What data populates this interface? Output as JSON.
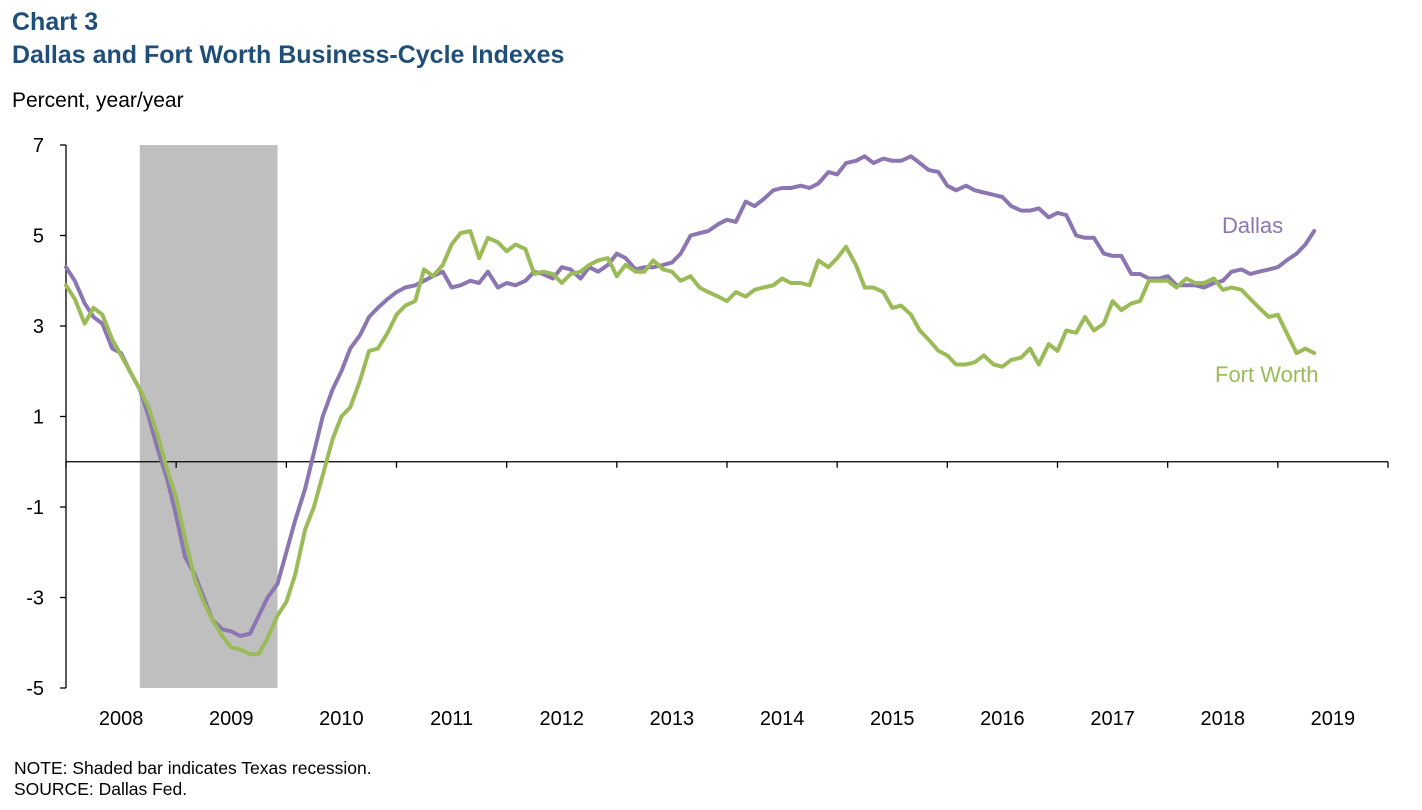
{
  "header": {
    "chart_number": "Chart 3",
    "title": "Dallas and Fort Worth Business-Cycle Indexes",
    "unit_label": "Percent, year/year"
  },
  "notes": {
    "note": "NOTE: Shaded bar indicates Texas recession.",
    "source": "SOURCE: Dallas Fed."
  },
  "colors": {
    "dallas": "#8c76b1",
    "fort_worth": "#9bbb59",
    "recession": "#bfbfbf",
    "axis": "#000000",
    "title": "#1f4e79"
  },
  "chart_data": {
    "type": "line",
    "title": "Dallas and Fort Worth Business-Cycle Indexes",
    "ylabel": "Percent, year/year",
    "xlabel": "",
    "ylim": [
      -5,
      7
    ],
    "yticks": [
      7,
      5,
      3,
      1,
      -1,
      -3,
      -5
    ],
    "x_range": [
      2007.5,
      2019.5
    ],
    "x_tick_labels": [
      "2008",
      "2009",
      "2010",
      "2011",
      "2012",
      "2013",
      "2014",
      "2015",
      "2016",
      "2017",
      "2018",
      "2019"
    ],
    "grid": false,
    "recession": {
      "start": 2008.17,
      "end": 2009.42
    },
    "series": [
      {
        "name": "Dallas",
        "label_text": "Dallas",
        "points": [
          [
            2007.5,
            4.3
          ],
          [
            2007.58,
            4.0
          ],
          [
            2007.67,
            3.5
          ],
          [
            2007.75,
            3.2
          ],
          [
            2007.83,
            3.05
          ],
          [
            2007.92,
            2.5
          ],
          [
            2008.0,
            2.4
          ],
          [
            2008.08,
            2.0
          ],
          [
            2008.17,
            1.6
          ],
          [
            2008.25,
            1.0
          ],
          [
            2008.33,
            0.3
          ],
          [
            2008.42,
            -0.4
          ],
          [
            2008.5,
            -1.2
          ],
          [
            2008.58,
            -2.1
          ],
          [
            2008.67,
            -2.5
          ],
          [
            2008.75,
            -3.0
          ],
          [
            2008.83,
            -3.5
          ],
          [
            2008.92,
            -3.7
          ],
          [
            2009.0,
            -3.75
          ],
          [
            2009.08,
            -3.85
          ],
          [
            2009.17,
            -3.8
          ],
          [
            2009.25,
            -3.4
          ],
          [
            2009.33,
            -3.0
          ],
          [
            2009.42,
            -2.7
          ],
          [
            2009.5,
            -2.0
          ],
          [
            2009.58,
            -1.3
          ],
          [
            2009.67,
            -0.6
          ],
          [
            2009.75,
            0.2
          ],
          [
            2009.83,
            1.0
          ],
          [
            2009.92,
            1.6
          ],
          [
            2010.0,
            2.0
          ],
          [
            2010.08,
            2.5
          ],
          [
            2010.17,
            2.8
          ],
          [
            2010.25,
            3.2
          ],
          [
            2010.33,
            3.4
          ],
          [
            2010.42,
            3.6
          ],
          [
            2010.5,
            3.75
          ],
          [
            2010.58,
            3.85
          ],
          [
            2010.67,
            3.9
          ],
          [
            2010.75,
            4.0
          ],
          [
            2010.83,
            4.1
          ],
          [
            2010.92,
            4.2
          ],
          [
            2011.0,
            3.85
          ],
          [
            2011.08,
            3.9
          ],
          [
            2011.17,
            4.0
          ],
          [
            2011.25,
            3.95
          ],
          [
            2011.33,
            4.2
          ],
          [
            2011.42,
            3.85
          ],
          [
            2011.5,
            3.95
          ],
          [
            2011.58,
            3.9
          ],
          [
            2011.67,
            4.0
          ],
          [
            2011.75,
            4.2
          ],
          [
            2011.83,
            4.15
          ],
          [
            2011.92,
            4.05
          ],
          [
            2012.0,
            4.3
          ],
          [
            2012.08,
            4.25
          ],
          [
            2012.17,
            4.05
          ],
          [
            2012.25,
            4.3
          ],
          [
            2012.33,
            4.2
          ],
          [
            2012.42,
            4.35
          ],
          [
            2012.5,
            4.6
          ],
          [
            2012.58,
            4.5
          ],
          [
            2012.67,
            4.25
          ],
          [
            2012.75,
            4.3
          ],
          [
            2012.83,
            4.3
          ],
          [
            2012.92,
            4.35
          ],
          [
            2013.0,
            4.4
          ],
          [
            2013.08,
            4.6
          ],
          [
            2013.17,
            5.0
          ],
          [
            2013.25,
            5.05
          ],
          [
            2013.33,
            5.1
          ],
          [
            2013.42,
            5.25
          ],
          [
            2013.5,
            5.35
          ],
          [
            2013.58,
            5.3
          ],
          [
            2013.67,
            5.75
          ],
          [
            2013.75,
            5.65
          ],
          [
            2013.83,
            5.8
          ],
          [
            2013.92,
            6.0
          ],
          [
            2014.0,
            6.05
          ],
          [
            2014.08,
            6.05
          ],
          [
            2014.17,
            6.1
          ],
          [
            2014.25,
            6.05
          ],
          [
            2014.33,
            6.15
          ],
          [
            2014.42,
            6.4
          ],
          [
            2014.5,
            6.35
          ],
          [
            2014.58,
            6.6
          ],
          [
            2014.67,
            6.65
          ],
          [
            2014.75,
            6.75
          ],
          [
            2014.83,
            6.6
          ],
          [
            2014.92,
            6.7
          ],
          [
            2015.0,
            6.65
          ],
          [
            2015.08,
            6.65
          ],
          [
            2015.17,
            6.75
          ],
          [
            2015.25,
            6.6
          ],
          [
            2015.33,
            6.45
          ],
          [
            2015.42,
            6.4
          ],
          [
            2015.5,
            6.1
          ],
          [
            2015.58,
            6.0
          ],
          [
            2015.67,
            6.1
          ],
          [
            2015.75,
            6.0
          ],
          [
            2015.83,
            5.95
          ],
          [
            2015.92,
            5.9
          ],
          [
            2016.0,
            5.85
          ],
          [
            2016.08,
            5.65
          ],
          [
            2016.17,
            5.55
          ],
          [
            2016.25,
            5.55
          ],
          [
            2016.33,
            5.6
          ],
          [
            2016.42,
            5.4
          ],
          [
            2016.5,
            5.5
          ],
          [
            2016.58,
            5.45
          ],
          [
            2016.67,
            5.0
          ],
          [
            2016.75,
            4.95
          ],
          [
            2016.83,
            4.95
          ],
          [
            2016.92,
            4.6
          ],
          [
            2017.0,
            4.55
          ],
          [
            2017.08,
            4.55
          ],
          [
            2017.17,
            4.15
          ],
          [
            2017.25,
            4.15
          ],
          [
            2017.33,
            4.05
          ],
          [
            2017.42,
            4.05
          ],
          [
            2017.5,
            4.1
          ],
          [
            2017.58,
            3.9
          ],
          [
            2017.67,
            3.9
          ],
          [
            2017.75,
            3.9
          ],
          [
            2017.83,
            3.85
          ],
          [
            2017.92,
            3.95
          ],
          [
            2018.0,
            4.0
          ],
          [
            2018.08,
            4.2
          ],
          [
            2018.17,
            4.25
          ],
          [
            2018.25,
            4.15
          ],
          [
            2018.33,
            4.2
          ],
          [
            2018.42,
            4.25
          ],
          [
            2018.5,
            4.3
          ],
          [
            2018.58,
            4.45
          ],
          [
            2018.67,
            4.6
          ],
          [
            2018.75,
            4.8
          ],
          [
            2018.83,
            5.1
          ]
        ]
      },
      {
        "name": "Fort Worth",
        "label_text": "Fort Worth",
        "points": [
          [
            2007.5,
            3.9
          ],
          [
            2007.58,
            3.6
          ],
          [
            2007.67,
            3.05
          ],
          [
            2007.75,
            3.4
          ],
          [
            2007.83,
            3.25
          ],
          [
            2007.92,
            2.7
          ],
          [
            2008.0,
            2.35
          ],
          [
            2008.08,
            2.0
          ],
          [
            2008.17,
            1.6
          ],
          [
            2008.25,
            1.2
          ],
          [
            2008.33,
            0.6
          ],
          [
            2008.42,
            -0.2
          ],
          [
            2008.5,
            -0.8
          ],
          [
            2008.58,
            -1.7
          ],
          [
            2008.67,
            -2.6
          ],
          [
            2008.75,
            -3.1
          ],
          [
            2008.83,
            -3.5
          ],
          [
            2008.92,
            -3.85
          ],
          [
            2009.0,
            -4.1
          ],
          [
            2009.08,
            -4.15
          ],
          [
            2009.17,
            -4.25
          ],
          [
            2009.25,
            -4.25
          ],
          [
            2009.33,
            -3.9
          ],
          [
            2009.42,
            -3.4
          ],
          [
            2009.5,
            -3.1
          ],
          [
            2009.58,
            -2.5
          ],
          [
            2009.67,
            -1.5
          ],
          [
            2009.75,
            -1.0
          ],
          [
            2009.83,
            -0.3
          ],
          [
            2009.92,
            0.5
          ],
          [
            2010.0,
            1.0
          ],
          [
            2010.08,
            1.2
          ],
          [
            2010.17,
            1.8
          ],
          [
            2010.25,
            2.45
          ],
          [
            2010.33,
            2.5
          ],
          [
            2010.42,
            2.85
          ],
          [
            2010.5,
            3.25
          ],
          [
            2010.58,
            3.45
          ],
          [
            2010.67,
            3.55
          ],
          [
            2010.75,
            4.25
          ],
          [
            2010.83,
            4.1
          ],
          [
            2010.92,
            4.35
          ],
          [
            2011.0,
            4.8
          ],
          [
            2011.08,
            5.05
          ],
          [
            2011.17,
            5.1
          ],
          [
            2011.25,
            4.5
          ],
          [
            2011.33,
            4.95
          ],
          [
            2011.42,
            4.85
          ],
          [
            2011.5,
            4.65
          ],
          [
            2011.58,
            4.8
          ],
          [
            2011.67,
            4.7
          ],
          [
            2011.75,
            4.15
          ],
          [
            2011.83,
            4.2
          ],
          [
            2011.92,
            4.15
          ],
          [
            2012.0,
            3.95
          ],
          [
            2012.08,
            4.15
          ],
          [
            2012.17,
            4.2
          ],
          [
            2012.25,
            4.35
          ],
          [
            2012.33,
            4.45
          ],
          [
            2012.42,
            4.5
          ],
          [
            2012.5,
            4.1
          ],
          [
            2012.58,
            4.35
          ],
          [
            2012.67,
            4.2
          ],
          [
            2012.75,
            4.2
          ],
          [
            2012.83,
            4.45
          ],
          [
            2012.92,
            4.25
          ],
          [
            2013.0,
            4.2
          ],
          [
            2013.08,
            4.0
          ],
          [
            2013.17,
            4.1
          ],
          [
            2013.25,
            3.85
          ],
          [
            2013.33,
            3.75
          ],
          [
            2013.42,
            3.65
          ],
          [
            2013.5,
            3.55
          ],
          [
            2013.58,
            3.75
          ],
          [
            2013.67,
            3.65
          ],
          [
            2013.75,
            3.8
          ],
          [
            2013.83,
            3.85
          ],
          [
            2013.92,
            3.9
          ],
          [
            2014.0,
            4.05
          ],
          [
            2014.08,
            3.95
          ],
          [
            2014.17,
            3.95
          ],
          [
            2014.25,
            3.9
          ],
          [
            2014.33,
            4.45
          ],
          [
            2014.42,
            4.3
          ],
          [
            2014.5,
            4.5
          ],
          [
            2014.58,
            4.75
          ],
          [
            2014.67,
            4.35
          ],
          [
            2014.75,
            3.85
          ],
          [
            2014.83,
            3.85
          ],
          [
            2014.92,
            3.75
          ],
          [
            2015.0,
            3.4
          ],
          [
            2015.08,
            3.45
          ],
          [
            2015.17,
            3.25
          ],
          [
            2015.25,
            2.9
          ],
          [
            2015.33,
            2.7
          ],
          [
            2015.42,
            2.45
          ],
          [
            2015.5,
            2.35
          ],
          [
            2015.58,
            2.15
          ],
          [
            2015.67,
            2.15
          ],
          [
            2015.75,
            2.2
          ],
          [
            2015.83,
            2.35
          ],
          [
            2015.92,
            2.15
          ],
          [
            2016.0,
            2.1
          ],
          [
            2016.08,
            2.25
          ],
          [
            2016.17,
            2.3
          ],
          [
            2016.25,
            2.5
          ],
          [
            2016.33,
            2.15
          ],
          [
            2016.42,
            2.6
          ],
          [
            2016.5,
            2.45
          ],
          [
            2016.58,
            2.9
          ],
          [
            2016.67,
            2.85
          ],
          [
            2016.75,
            3.2
          ],
          [
            2016.83,
            2.9
          ],
          [
            2016.92,
            3.05
          ],
          [
            2017.0,
            3.55
          ],
          [
            2017.08,
            3.35
          ],
          [
            2017.17,
            3.5
          ],
          [
            2017.25,
            3.55
          ],
          [
            2017.33,
            4.0
          ],
          [
            2017.42,
            4.0
          ],
          [
            2017.5,
            4.0
          ],
          [
            2017.58,
            3.85
          ],
          [
            2017.67,
            4.05
          ],
          [
            2017.75,
            3.95
          ],
          [
            2017.83,
            3.95
          ],
          [
            2017.92,
            4.05
          ],
          [
            2018.0,
            3.8
          ],
          [
            2018.08,
            3.85
          ],
          [
            2018.17,
            3.8
          ],
          [
            2018.25,
            3.6
          ],
          [
            2018.33,
            3.4
          ],
          [
            2018.42,
            3.2
          ],
          [
            2018.5,
            3.25
          ],
          [
            2018.58,
            2.85
          ],
          [
            2018.67,
            2.4
          ],
          [
            2018.75,
            2.5
          ],
          [
            2018.83,
            2.4
          ]
        ]
      }
    ]
  }
}
